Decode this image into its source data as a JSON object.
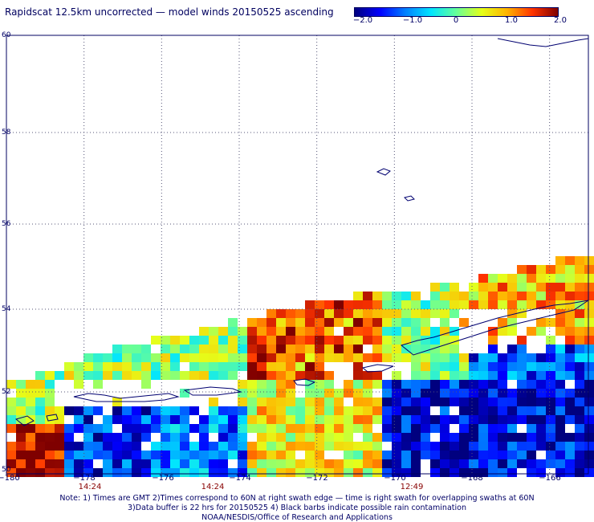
{
  "title": "Rapidscat 12.5km uncorrected — model winds 20150525 ascending",
  "colorbar": {
    "min": -2.0,
    "max": 2.0,
    "tick_labels": [
      "−2.0",
      "−1.0",
      "0",
      "1.0",
      "2.0"
    ],
    "colors": [
      "#00007f",
      "#0000ff",
      "#0080ff",
      "#00e5ff",
      "#66ff99",
      "#e5ff1a",
      "#ffb300",
      "#ff3300",
      "#7f0000"
    ]
  },
  "map": {
    "lon_range": [
      -180,
      -165
    ],
    "lat_range": [
      50,
      60
    ],
    "lon_ticks": [
      "−180",
      "−178",
      "−176",
      "−174",
      "−172",
      "−170",
      "−168",
      "−166"
    ],
    "lat_ticks": [
      "60",
      "58",
      "56",
      "54",
      "52",
      "50"
    ],
    "pass_times": [
      "14:24",
      "14:24",
      "12:49"
    ]
  },
  "notes": {
    "line1": "Note: 1) Times are GMT 2)Times correspond to 60N at right swath edge — time is right swath for overlapping swaths at 60N",
    "line2": "3)Data buffer is 22 hrs for 20150525 4) Black barbs indicate possible rain contamination",
    "line3": "NOAA/NESDIS/Office of Research and Applications"
  }
}
